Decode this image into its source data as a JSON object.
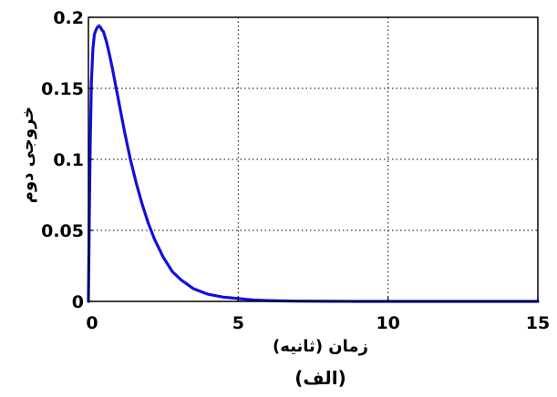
{
  "chart_data": {
    "type": "line",
    "title": "",
    "caption": "(الف)",
    "xlabel": "زمان (ثانیه)",
    "ylabel": "خروجی دوم",
    "xlim": [
      0,
      15
    ],
    "ylim": [
      0,
      0.2
    ],
    "xticks": [
      "0",
      "5",
      "10",
      "15"
    ],
    "yticks": [
      "0",
      "0.05",
      "0.1",
      "0.15",
      "0.2"
    ],
    "grid": true,
    "series": [
      {
        "color": "#1010dd",
        "x": [
          0,
          0.03,
          0.06,
          0.1,
          0.15,
          0.2,
          0.25,
          0.3,
          0.35,
          0.4,
          0.45,
          0.5,
          0.6,
          0.7,
          0.8,
          1.0,
          1.2,
          1.4,
          1.6,
          1.8,
          2.0,
          2.2,
          2.5,
          2.8,
          3.1,
          3.5,
          4.0,
          4.5,
          5.0,
          5.5,
          6.0,
          6.5,
          7.0,
          8.0,
          9.0,
          10.0,
          11.0,
          12.0,
          13.0,
          14.0,
          15.0
        ],
        "y": [
          0,
          0.06,
          0.11,
          0.155,
          0.178,
          0.188,
          0.191,
          0.193,
          0.194,
          0.193,
          0.191,
          0.19,
          0.183,
          0.174,
          0.164,
          0.142,
          0.12,
          0.1,
          0.083,
          0.068,
          0.055,
          0.044,
          0.031,
          0.021,
          0.015,
          0.009,
          0.005,
          0.003,
          0.002,
          0.001,
          0.0006,
          0.0003,
          0.0002,
          0.0001,
          0,
          0,
          0,
          0,
          0,
          0,
          0
        ]
      }
    ]
  }
}
